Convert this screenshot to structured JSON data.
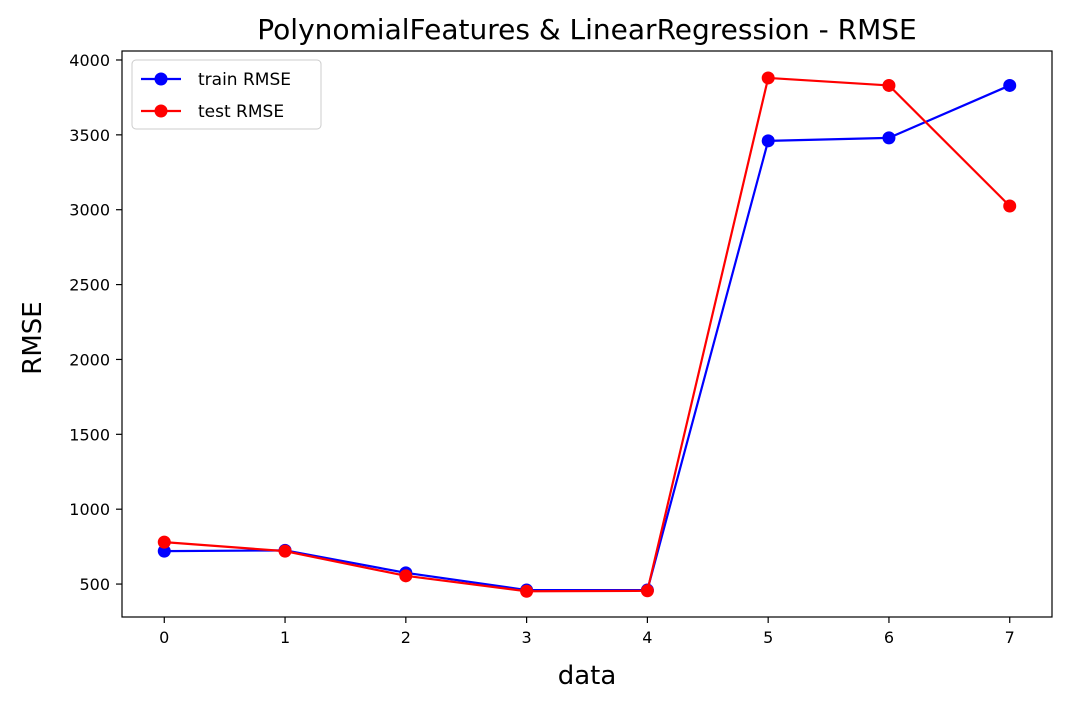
{
  "chart_data": {
    "type": "line",
    "title": "PolynomialFeatures & LinearRegression - RMSE",
    "xlabel": "data",
    "ylabel": "RMSE",
    "x": [
      0,
      1,
      2,
      3,
      4,
      5,
      6,
      7
    ],
    "x_ticks": [
      "0",
      "1",
      "2",
      "3",
      "4",
      "5",
      "6",
      "7"
    ],
    "xlim": [
      -0.35,
      7.35
    ],
    "y_ticks": [
      "500",
      "1000",
      "1500",
      "2000",
      "2500",
      "3000",
      "3500",
      "4000"
    ],
    "ylim": [
      280,
      4060
    ],
    "grid": false,
    "legend_position": "upper-left",
    "series": [
      {
        "name": "train RMSE",
        "color": "#0000ff",
        "marker": "circle",
        "values": [
          720,
          725,
          575,
          460,
          460,
          3460,
          3480,
          3830
        ]
      },
      {
        "name": "test RMSE",
        "color": "#ff0000",
        "marker": "circle",
        "values": [
          780,
          720,
          555,
          452,
          455,
          3880,
          3830,
          3025
        ]
      }
    ]
  }
}
